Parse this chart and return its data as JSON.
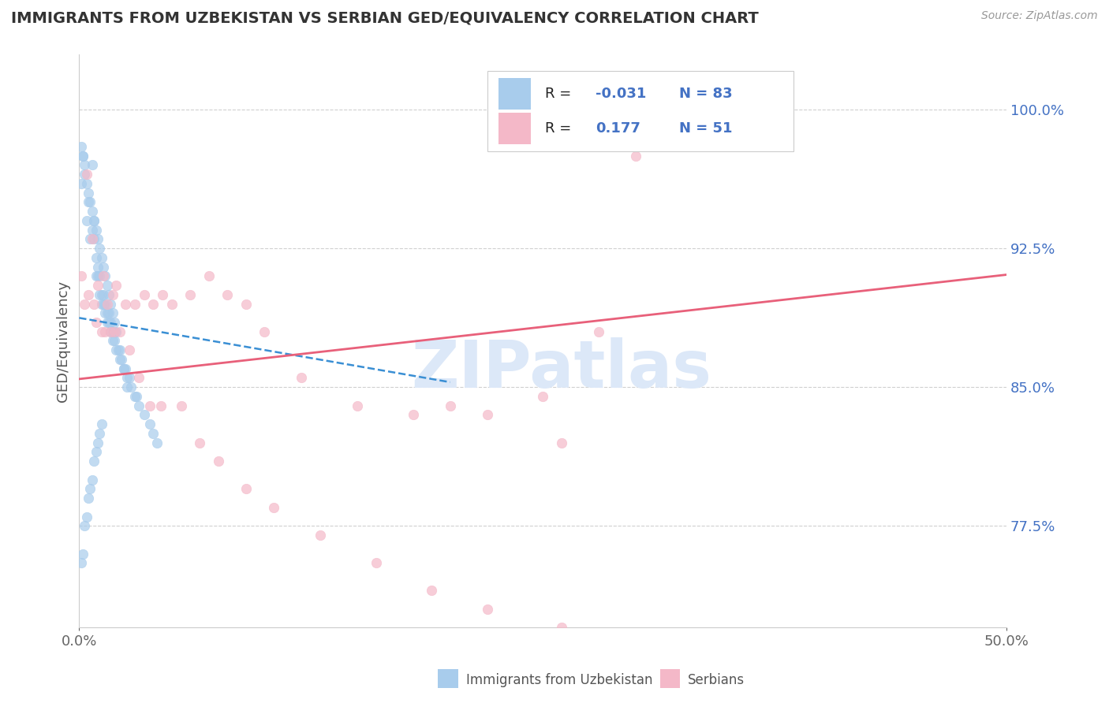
{
  "title": "IMMIGRANTS FROM UZBEKISTAN VS SERBIAN GED/EQUIVALENCY CORRELATION CHART",
  "source": "Source: ZipAtlas.com",
  "xlim": [
    0.0,
    0.5
  ],
  "ylim": [
    0.72,
    1.03
  ],
  "yticks": [
    0.775,
    0.85,
    0.925,
    1.0
  ],
  "ytick_labels": [
    "77.5%",
    "85.0%",
    "92.5%",
    "100.0%"
  ],
  "xticks": [
    0.0,
    0.5
  ],
  "xtick_labels": [
    "0.0%",
    "50.0%"
  ],
  "blue_R": -0.031,
  "blue_N": 83,
  "pink_R": 0.177,
  "pink_N": 51,
  "blue_color": "#a8ccec",
  "pink_color": "#f4b8c8",
  "trend_blue_color": "#3a8fd4",
  "trend_pink_color": "#e8607a",
  "watermark": "ZIPatlas",
  "watermark_color": "#dce8f8",
  "legend_label_blue": "Immigrants from Uzbekistan",
  "legend_label_pink": "Serbians",
  "ylabel": "GED/Equivalency",
  "blue_x": [
    0.001,
    0.002,
    0.003,
    0.004,
    0.005,
    0.006,
    0.007,
    0.007,
    0.008,
    0.008,
    0.009,
    0.009,
    0.01,
    0.01,
    0.011,
    0.011,
    0.012,
    0.012,
    0.013,
    0.013,
    0.014,
    0.014,
    0.015,
    0.015,
    0.016,
    0.016,
    0.017,
    0.017,
    0.018,
    0.018,
    0.019,
    0.019,
    0.02,
    0.021,
    0.022,
    0.023,
    0.024,
    0.025,
    0.026,
    0.027,
    0.028,
    0.03,
    0.031,
    0.032,
    0.035,
    0.038,
    0.04,
    0.042,
    0.001,
    0.002,
    0.003,
    0.004,
    0.005,
    0.006,
    0.007,
    0.008,
    0.009,
    0.01,
    0.011,
    0.012,
    0.013,
    0.014,
    0.015,
    0.016,
    0.017,
    0.018,
    0.019,
    0.02,
    0.022,
    0.024,
    0.026,
    0.001,
    0.002,
    0.003,
    0.004,
    0.005,
    0.006,
    0.007,
    0.008,
    0.009,
    0.01,
    0.011,
    0.012
  ],
  "blue_y": [
    0.96,
    0.975,
    0.97,
    0.94,
    0.95,
    0.93,
    0.935,
    0.97,
    0.93,
    0.94,
    0.91,
    0.92,
    0.91,
    0.915,
    0.9,
    0.91,
    0.895,
    0.9,
    0.895,
    0.9,
    0.89,
    0.895,
    0.885,
    0.89,
    0.885,
    0.89,
    0.88,
    0.885,
    0.875,
    0.88,
    0.875,
    0.88,
    0.87,
    0.87,
    0.865,
    0.865,
    0.86,
    0.86,
    0.855,
    0.855,
    0.85,
    0.845,
    0.845,
    0.84,
    0.835,
    0.83,
    0.825,
    0.82,
    0.98,
    0.975,
    0.965,
    0.96,
    0.955,
    0.95,
    0.945,
    0.94,
    0.935,
    0.93,
    0.925,
    0.92,
    0.915,
    0.91,
    0.905,
    0.9,
    0.895,
    0.89,
    0.885,
    0.88,
    0.87,
    0.86,
    0.85,
    0.755,
    0.76,
    0.775,
    0.78,
    0.79,
    0.795,
    0.8,
    0.81,
    0.815,
    0.82,
    0.825,
    0.83
  ],
  "pink_x": [
    0.001,
    0.003,
    0.005,
    0.008,
    0.01,
    0.013,
    0.015,
    0.018,
    0.02,
    0.025,
    0.03,
    0.035,
    0.04,
    0.045,
    0.05,
    0.06,
    0.07,
    0.08,
    0.09,
    0.1,
    0.12,
    0.15,
    0.18,
    0.2,
    0.22,
    0.25,
    0.28,
    0.3,
    0.007,
    0.012,
    0.017,
    0.022,
    0.027,
    0.032,
    0.038,
    0.044,
    0.055,
    0.065,
    0.075,
    0.09,
    0.105,
    0.13,
    0.16,
    0.19,
    0.22,
    0.26,
    0.004,
    0.009,
    0.014,
    0.019,
    0.26
  ],
  "pink_y": [
    0.91,
    0.895,
    0.9,
    0.895,
    0.905,
    0.91,
    0.895,
    0.9,
    0.905,
    0.895,
    0.895,
    0.9,
    0.895,
    0.9,
    0.895,
    0.9,
    0.91,
    0.9,
    0.895,
    0.88,
    0.855,
    0.84,
    0.835,
    0.84,
    0.835,
    0.845,
    0.88,
    0.975,
    0.93,
    0.88,
    0.88,
    0.88,
    0.87,
    0.855,
    0.84,
    0.84,
    0.84,
    0.82,
    0.81,
    0.795,
    0.785,
    0.77,
    0.755,
    0.74,
    0.73,
    0.72,
    0.965,
    0.885,
    0.88,
    0.88,
    0.82
  ]
}
